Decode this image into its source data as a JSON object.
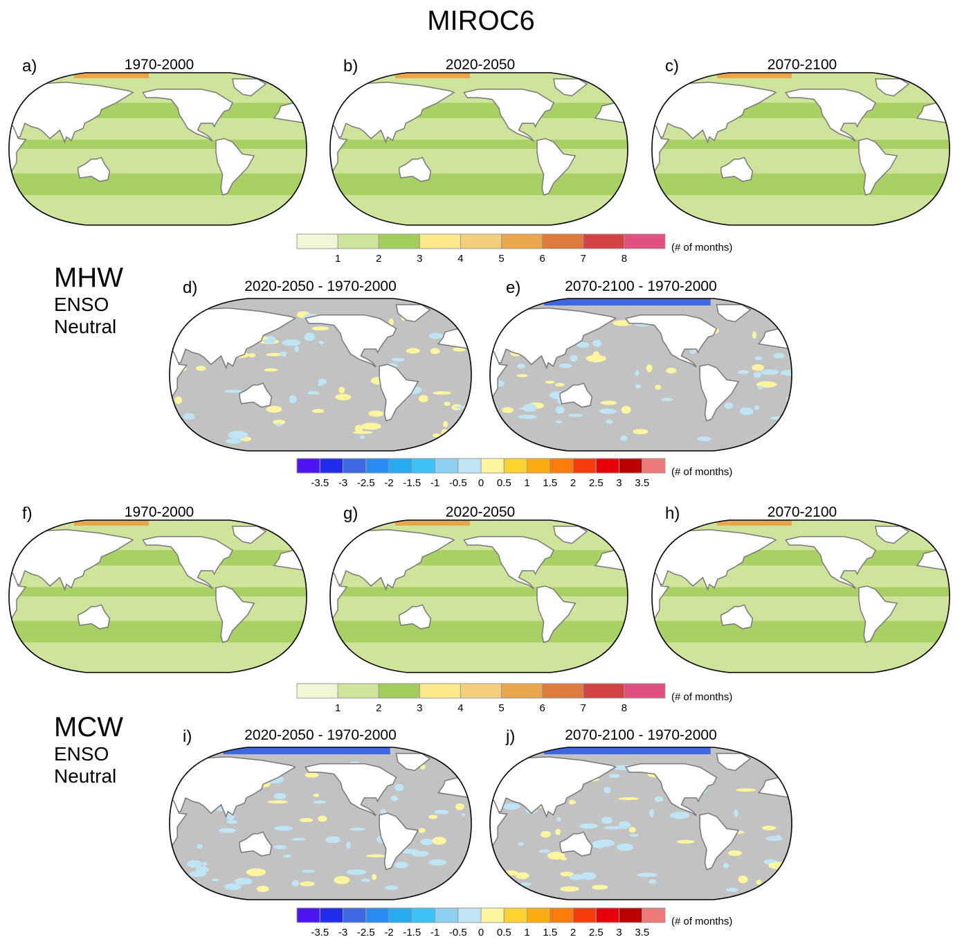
{
  "title": "MIROC6",
  "sections": [
    {
      "label": "MHW",
      "sub1": "ENSO",
      "sub2": "Neutral"
    },
    {
      "label": "MCW",
      "sub1": "ENSO",
      "sub2": "Neutral"
    }
  ],
  "panels": [
    {
      "letter": "a)",
      "title": "1970-2000"
    },
    {
      "letter": "b)",
      "title": "2020-2050"
    },
    {
      "letter": "c)",
      "title": "2070-2100"
    },
    {
      "letter": "d)",
      "title": "2020-2050 - 1970-2000"
    },
    {
      "letter": "e)",
      "title": "2070-2100 - 1970-2000"
    },
    {
      "letter": "f)",
      "title": "1970-2000"
    },
    {
      "letter": "g)",
      "title": "2020-2050"
    },
    {
      "letter": "h)",
      "title": "2070-2100"
    },
    {
      "letter": "i)",
      "title": "2020-2050 - 1970-2000"
    },
    {
      "letter": "j)",
      "title": "2070-2100 - 1970-2000"
    }
  ],
  "colorbars": {
    "absolute": {
      "unit": "(# of months)",
      "colors": [
        "#f1f6d6",
        "#cfe49b",
        "#a2cc5c",
        "#fde88a",
        "#f3cf7c",
        "#eaa64b",
        "#de7a3c",
        "#d34343",
        "#e04f7e"
      ],
      "ticks": [
        "1",
        "2",
        "3",
        "4",
        "5",
        "6",
        "7",
        "8"
      ]
    },
    "difference": {
      "unit": "(# of months)",
      "colors": [
        "#4b14f0",
        "#1f2cec",
        "#3f68e0",
        "#2a8cf2",
        "#26aaf0",
        "#3cc2f2",
        "#8ed0f0",
        "#bfe4f4",
        "#fdf5a0",
        "#fdd22e",
        "#fdab10",
        "#fc7c0a",
        "#f83c0c",
        "#e6000a",
        "#bc0000",
        "#ec7a7a"
      ],
      "ticks": [
        "-3.5",
        "-3",
        "-2.5",
        "-2",
        "-1.5",
        "-1",
        "-0.5",
        "0",
        "0.5",
        "1",
        "1.5",
        "2",
        "2.5",
        "3",
        "3.5"
      ]
    }
  },
  "map_style": {
    "land": "#ffffff",
    "coast": "#777777",
    "absolute_ocean": "#cfe49b",
    "absolute_band": "#a2cc5c",
    "difference_ocean": "#c2c2c2",
    "difference_neg": "#bfe4f4",
    "difference_pos": "#fdf5a0"
  }
}
